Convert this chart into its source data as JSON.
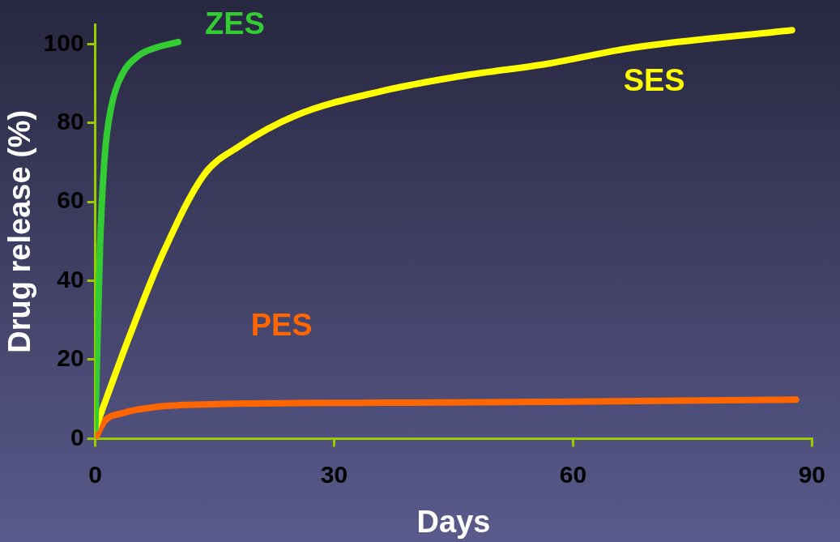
{
  "chart_data": {
    "type": "line",
    "xlabel": "Days",
    "ylabel": "Drug release (%)",
    "xlim": [
      0,
      90
    ],
    "xticks": [
      0,
      30,
      60,
      90
    ],
    "ylim": [
      0,
      105
    ],
    "yticks": [
      0,
      20,
      40,
      60,
      80,
      100
    ],
    "grid": false,
    "legend": false,
    "marker": "none",
    "line_style": "solid",
    "series": [
      {
        "name": "ZES",
        "color": "#33cc33",
        "x": [
          0,
          0.6,
          1.2,
          2,
          3.3,
          5.4,
          7.5,
          10.4
        ],
        "values": [
          2.5,
          49,
          72,
          84,
          92,
          97,
          99,
          100.5
        ]
      },
      {
        "name": "SES",
        "color": "#ffff00",
        "x": [
          0,
          4.3,
          8.5,
          13.7,
          18,
          25.3,
          35.8,
          46.3,
          56.8,
          67.3,
          87.5
        ],
        "values": [
          2.5,
          26,
          47,
          67,
          74,
          82,
          88,
          92,
          95,
          99,
          103.5
        ]
      },
      {
        "name": "PES",
        "color": "#ff6600",
        "x": [
          0,
          1.2,
          3.3,
          7.5,
          14.8,
          35.8,
          56.8,
          88
        ],
        "values": [
          0,
          4.5,
          6.4,
          8,
          8.7,
          9.1,
          9.3,
          9.9
        ]
      }
    ]
  }
}
